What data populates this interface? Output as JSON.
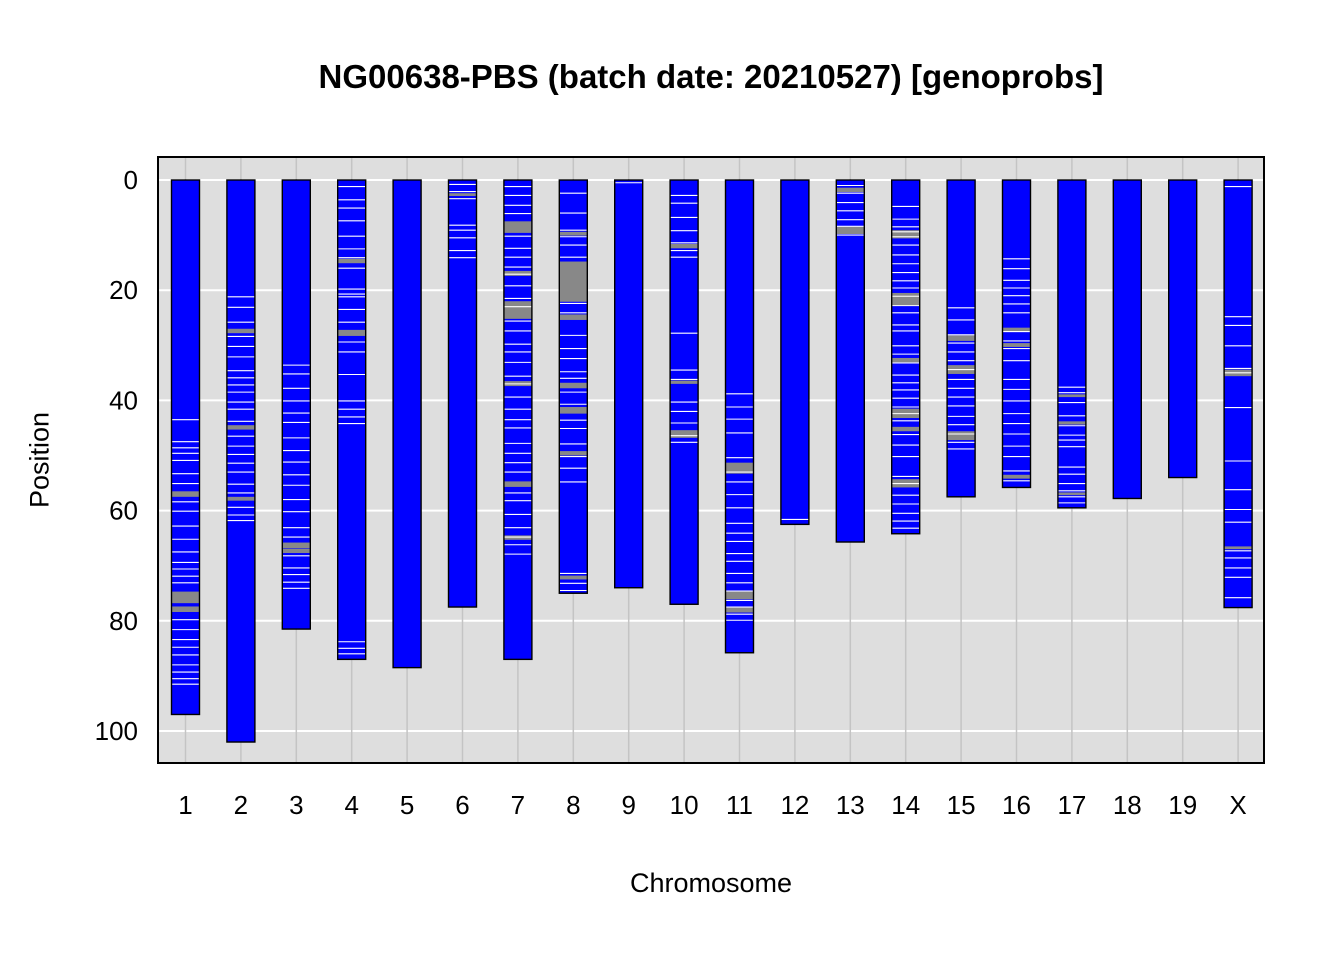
{
  "chart_data": {
    "type": "chromosome-ideogram",
    "title": "NG00638-PBS (batch date: 20210527) [genoprobs]",
    "xlabel": "Chromosome",
    "ylabel": "Position",
    "ylim": [
      0,
      105
    ],
    "yticks": [
      0,
      20,
      40,
      60,
      80,
      100
    ],
    "grid": true,
    "colors": {
      "panel": "#dedede",
      "chromosome": "#0000ff",
      "outline": "#000000",
      "crossover": "#ffffff",
      "missing": "#888888"
    },
    "chromosomes": [
      {
        "name": "1",
        "length": 97.0,
        "white": [
          43.5,
          47.5,
          48.6,
          49.6,
          50.9,
          53.3,
          55.1,
          58.4,
          60.1,
          62.8,
          65.2,
          67.5,
          69.4,
          70.6,
          71.9,
          73.1,
          79.8,
          81.6,
          83.4,
          84.8,
          86.2,
          88.0,
          89.3,
          90.5,
          91.5
        ],
        "gray": [
          [
            56.5,
            57.5
          ],
          [
            74.7,
            76.8
          ],
          [
            77.4,
            78.4
          ]
        ]
      },
      {
        "name": "2",
        "length": 102.0,
        "white": [
          21.2,
          23.1,
          25.8,
          28.4,
          30.2,
          32.1,
          34.6,
          35.9,
          37.2,
          38.5,
          40.3,
          41.6,
          43.8,
          46.5,
          48.3,
          49.8,
          51.4,
          53.0,
          55.2,
          56.8,
          59.4,
          60.8,
          61.8
        ],
        "gray": [
          [
            27.0,
            27.8
          ],
          [
            44.5,
            45.3
          ],
          [
            57.5,
            58.2
          ]
        ]
      },
      {
        "name": "3",
        "length": 81.5,
        "white": [
          33.6,
          35.2,
          37.8,
          40.1,
          42.3,
          44.0,
          46.8,
          49.1,
          51.2,
          53.5,
          55.4,
          58.0,
          60.2,
          63.1,
          64.8,
          68.2,
          70.4,
          71.6,
          73.0,
          74.1
        ],
        "gray": [
          [
            65.8,
            66.8
          ],
          [
            66.9,
            67.7
          ]
        ]
      },
      {
        "name": "4",
        "length": 87.0,
        "white": [
          1.2,
          3.6,
          5.1,
          7.4,
          10.2,
          12.5,
          14.1,
          16.0,
          19.8,
          20.7,
          21.2,
          23.5,
          25.8,
          29.4,
          31.2,
          35.3,
          40.1,
          41.6,
          43.0,
          44.2,
          83.8,
          85.0,
          86.0
        ],
        "gray": [
          [
            14.3,
            15.1
          ],
          [
            27.2,
            28.3
          ]
        ]
      },
      {
        "name": "5",
        "length": 88.5,
        "white": [],
        "gray": []
      },
      {
        "name": "6",
        "length": 77.5,
        "white": [
          0.8,
          2.1,
          3.4,
          8.2,
          9.1,
          10.5,
          12.8,
          14.1
        ],
        "gray": [
          [
            2.4,
            2.9
          ]
        ]
      },
      {
        "name": "7",
        "length": 87.0,
        "white": [
          1.2,
          2.8,
          4.6,
          6.1,
          10.2,
          12.4,
          14.0,
          15.8,
          17.1,
          19.2,
          21.5,
          23.0,
          25.6,
          27.4,
          29.8,
          31.2,
          33.1,
          35.6,
          37.0,
          39.4,
          41.6,
          43.5,
          45.0,
          47.8,
          49.6,
          51.3,
          53.0,
          56.8,
          58.2,
          60.7,
          63.1,
          64.8,
          66.2,
          67.9
        ],
        "gray": [
          [
            7.5,
            9.6
          ],
          [
            16.5,
            17.4
          ],
          [
            22.0,
            25.2
          ],
          [
            36.5,
            37.4
          ],
          [
            54.7,
            55.7
          ],
          [
            64.5,
            65.3
          ]
        ]
      },
      {
        "name": "8",
        "length": 75.0,
        "white": [
          2.4,
          6.0,
          9.1,
          10.3,
          11.8,
          14.0,
          22.4,
          24.1,
          28.2,
          30.6,
          32.4,
          34.8,
          36.0,
          38.5,
          40.7,
          43.6,
          45.1,
          47.9,
          50.2,
          52.3,
          54.8,
          71.4,
          73.2,
          74.5
        ],
        "gray": [
          [
            9.4,
            10.1
          ],
          [
            14.8,
            22.1
          ],
          [
            24.4,
            25.4
          ],
          [
            36.8,
            37.8
          ],
          [
            41.2,
            42.4
          ],
          [
            49.2,
            50.0
          ],
          [
            71.8,
            72.5
          ]
        ]
      },
      {
        "name": "9",
        "length": 74.0,
        "white": [
          0.5
        ],
        "gray": []
      },
      {
        "name": "10",
        "length": 77.0,
        "white": [
          2.8,
          4.2,
          6.8,
          9.2,
          11.4,
          12.8,
          14.0,
          27.8,
          34.5,
          36.2,
          40.3,
          42.0,
          44.1,
          46.4,
          47.6
        ],
        "gray": [
          [
            11.6,
            12.4
          ],
          [
            36.4,
            37.0
          ],
          [
            45.4,
            46.8
          ]
        ]
      },
      {
        "name": "11",
        "length": 85.8,
        "white": [
          38.8,
          41.2,
          43.4,
          45.9,
          50.4,
          53.0,
          54.8,
          57.1,
          59.5,
          62.3,
          64.1,
          65.6,
          67.8,
          69.2,
          71.4,
          73.1,
          74.6,
          76.3,
          77.5,
          78.8,
          79.9
        ],
        "gray": [
          [
            51.3,
            53.3
          ],
          [
            74.7,
            76.1
          ],
          [
            77.6,
            78.5
          ]
        ]
      },
      {
        "name": "12",
        "length": 62.5,
        "white": [
          61.6
        ],
        "gray": []
      },
      {
        "name": "13",
        "length": 65.7,
        "white": [
          1.0,
          2.4,
          4.1,
          5.6,
          7.2,
          8.4,
          10.0
        ],
        "gray": [
          [
            1.4,
            2.2
          ],
          [
            8.5,
            9.8
          ]
        ]
      },
      {
        "name": "14",
        "length": 64.2,
        "white": [
          4.8,
          7.1,
          8.5,
          9.4,
          10.3,
          11.8,
          13.6,
          15.2,
          16.8,
          18.3,
          19.6,
          21.1,
          22.8,
          24.1,
          26.3,
          27.4,
          30.1,
          31.6,
          33.2,
          35.4,
          36.8,
          38.1,
          39.6,
          41.2,
          42.4,
          43.7,
          46.2,
          48.1,
          50.2,
          53.8,
          55.1,
          57.2,
          58.8,
          60.5,
          61.9,
          63.2
        ],
        "gray": [
          [
            9.1,
            10.6
          ],
          [
            20.5,
            22.8
          ],
          [
            32.3,
            33.1
          ],
          [
            41.5,
            43.2
          ],
          [
            44.8,
            45.6
          ],
          [
            54.3,
            55.8
          ]
        ]
      },
      {
        "name": "15",
        "length": 57.5,
        "white": [
          23.2,
          25.4,
          28.1,
          29.6,
          31.2,
          32.8,
          34.4,
          36.2,
          37.8,
          39.4,
          41.0,
          42.9,
          44.4,
          46.1,
          47.6,
          48.8
        ],
        "gray": [
          [
            28.2,
            29.2
          ],
          [
            33.6,
            35.2
          ],
          [
            45.6,
            47.2
          ]
        ]
      },
      {
        "name": "16",
        "length": 55.8,
        "white": [
          14.3,
          16.1,
          18.2,
          19.6,
          21.0,
          22.5,
          24.1,
          27.5,
          29.2,
          30.6,
          32.8,
          36.2,
          38.0,
          40.1,
          42.4,
          44.2,
          46.1,
          48.3,
          50.2,
          52.8,
          54.6
        ],
        "gray": [
          [
            26.8,
            27.6
          ],
          [
            29.6,
            30.3
          ],
          [
            53.5,
            54.2
          ]
        ]
      },
      {
        "name": "17",
        "length": 59.5,
        "white": [
          37.6,
          38.6,
          40.4,
          42.8,
          44.6,
          46.3,
          47.2,
          48.4,
          52.1,
          53.4,
          55.1,
          56.4,
          57.5,
          58.6
        ],
        "gray": [
          [
            38.9,
            39.4
          ],
          [
            43.8,
            44.4
          ],
          [
            56.7,
            57.2
          ]
        ]
      },
      {
        "name": "18",
        "length": 57.8,
        "white": [],
        "gray": []
      },
      {
        "name": "19",
        "length": 54.0,
        "white": [],
        "gray": []
      },
      {
        "name": "X",
        "length": 77.6,
        "white": [
          1.2,
          24.8,
          26.4,
          30.1,
          34.2,
          35.0,
          41.3,
          51.0,
          56.2,
          59.8,
          62.1,
          67.3,
          68.6,
          70.4,
          72.1,
          75.8
        ],
        "gray": [
          [
            34.4,
            35.6
          ],
          [
            66.5,
            67.0
          ]
        ]
      }
    ]
  }
}
